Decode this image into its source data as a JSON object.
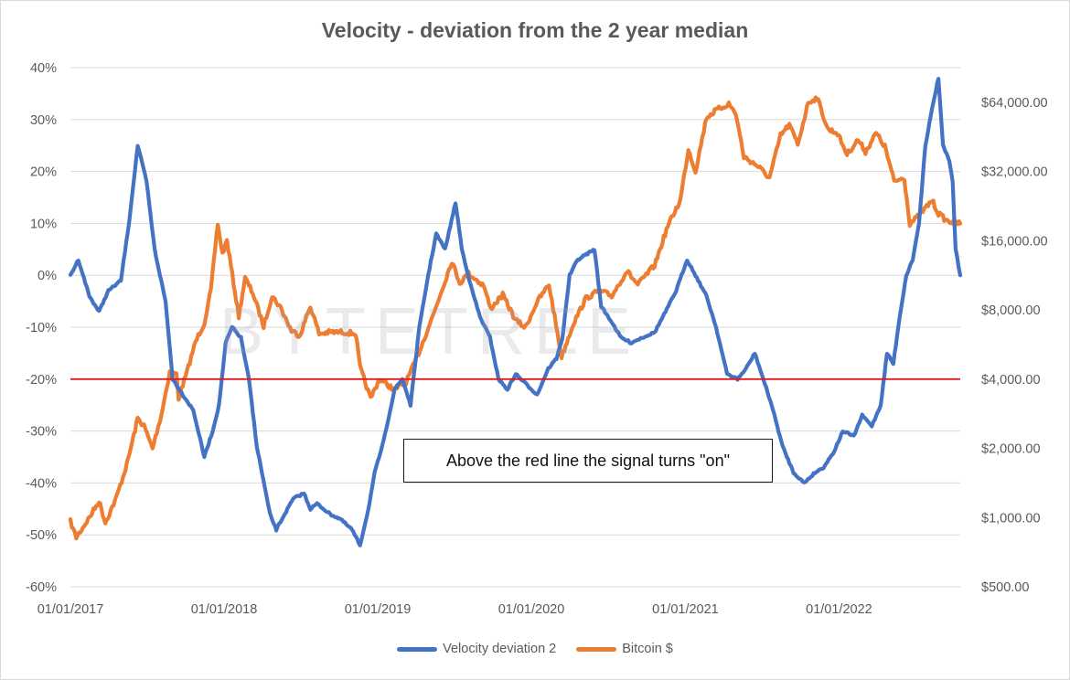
{
  "chart_data": {
    "type": "line",
    "title": "Velocity - deviation from the 2 year median",
    "x_tick_labels": [
      "01/01/2017",
      "01/01/2018",
      "01/01/2019",
      "01/01/2020",
      "01/01/2021",
      "01/01/2022"
    ],
    "x_range": [
      "01/01/2017",
      "16/10/2022"
    ],
    "y_left": {
      "ticks": [
        "40%",
        "30%",
        "20%",
        "10%",
        "0%",
        "-10%",
        "-20%",
        "-30%",
        "-40%",
        "-50%",
        "-60%"
      ],
      "ylim": [
        -0.6,
        0.4
      ]
    },
    "y_right": {
      "scale": "log2",
      "ticks": [
        "$64,000.00",
        "$32,000.00",
        "$16,000.00",
        "$8,000.00",
        "$4,000.00",
        "$2,000.00",
        "$1,000.00",
        "$500.00"
      ],
      "ylim": [
        500,
        90509
      ]
    },
    "grid": "horizontal",
    "legend_position": "bottom",
    "series": [
      {
        "name": "Velocity deviation 2",
        "axis": "left",
        "color": "#4472c4",
        "points": [
          [
            "2017-01-01",
            0.0
          ],
          [
            "2017-01-20",
            0.03
          ],
          [
            "2017-02-15",
            -0.04
          ],
          [
            "2017-03-10",
            -0.07
          ],
          [
            "2017-04-01",
            -0.03
          ],
          [
            "2017-05-01",
            -0.01
          ],
          [
            "2017-05-20",
            0.1
          ],
          [
            "2017-06-10",
            0.25
          ],
          [
            "2017-07-01",
            0.18
          ],
          [
            "2017-07-20",
            0.05
          ],
          [
            "2017-08-15",
            -0.05
          ],
          [
            "2017-09-01",
            -0.2
          ],
          [
            "2017-09-25",
            -0.23
          ],
          [
            "2017-10-20",
            -0.26
          ],
          [
            "2017-11-15",
            -0.35
          ],
          [
            "2017-12-05",
            -0.3
          ],
          [
            "2017-12-20",
            -0.25
          ],
          [
            "2018-01-05",
            -0.13
          ],
          [
            "2018-01-20",
            -0.1
          ],
          [
            "2018-02-10",
            -0.12
          ],
          [
            "2018-03-01",
            -0.2
          ],
          [
            "2018-03-20",
            -0.33
          ],
          [
            "2018-04-20",
            -0.46
          ],
          [
            "2018-05-05",
            -0.49
          ],
          [
            "2018-05-25",
            -0.46
          ],
          [
            "2018-06-15",
            -0.43
          ],
          [
            "2018-07-10",
            -0.42
          ],
          [
            "2018-07-25",
            -0.45
          ],
          [
            "2018-08-10",
            -0.44
          ],
          [
            "2018-09-10",
            -0.46
          ],
          [
            "2018-10-05",
            -0.47
          ],
          [
            "2018-11-01",
            -0.49
          ],
          [
            "2018-11-20",
            -0.52
          ],
          [
            "2018-12-10",
            -0.45
          ],
          [
            "2018-12-25",
            -0.38
          ],
          [
            "2019-01-15",
            -0.32
          ],
          [
            "2019-02-10",
            -0.22
          ],
          [
            "2019-03-01",
            -0.2
          ],
          [
            "2019-03-20",
            -0.25
          ],
          [
            "2019-04-10",
            -0.1
          ],
          [
            "2019-05-01",
            0.0
          ],
          [
            "2019-05-20",
            0.08
          ],
          [
            "2019-06-10",
            0.05
          ],
          [
            "2019-07-05",
            0.14
          ],
          [
            "2019-07-20",
            0.05
          ],
          [
            "2019-08-10",
            -0.02
          ],
          [
            "2019-09-01",
            -0.08
          ],
          [
            "2019-09-25",
            -0.12
          ],
          [
            "2019-10-15",
            -0.2
          ],
          [
            "2019-11-05",
            -0.22
          ],
          [
            "2019-11-25",
            -0.19
          ],
          [
            "2019-12-20",
            -0.21
          ],
          [
            "2020-01-15",
            -0.23
          ],
          [
            "2020-02-10",
            -0.18
          ],
          [
            "2020-03-01",
            -0.16
          ],
          [
            "2020-03-15",
            -0.12
          ],
          [
            "2020-04-01",
            0.0
          ],
          [
            "2020-04-20",
            0.03
          ],
          [
            "2020-05-10",
            0.04
          ],
          [
            "2020-05-30",
            0.05
          ],
          [
            "2020-06-15",
            -0.06
          ],
          [
            "2020-07-10",
            -0.09
          ],
          [
            "2020-08-01",
            -0.12
          ],
          [
            "2020-08-25",
            -0.13
          ],
          [
            "2020-09-20",
            -0.12
          ],
          [
            "2020-10-20",
            -0.11
          ],
          [
            "2020-11-15",
            -0.07
          ],
          [
            "2020-12-10",
            -0.03
          ],
          [
            "2021-01-05",
            0.03
          ],
          [
            "2021-01-25",
            0.0
          ],
          [
            "2021-02-20",
            -0.04
          ],
          [
            "2021-03-15",
            -0.1
          ],
          [
            "2021-04-10",
            -0.19
          ],
          [
            "2021-05-05",
            -0.2
          ],
          [
            "2021-05-25",
            -0.18
          ],
          [
            "2021-06-15",
            -0.15
          ],
          [
            "2021-07-05",
            -0.2
          ],
          [
            "2021-07-25",
            -0.25
          ],
          [
            "2021-08-20",
            -0.33
          ],
          [
            "2021-09-15",
            -0.38
          ],
          [
            "2021-10-10",
            -0.4
          ],
          [
            "2021-11-05",
            -0.38
          ],
          [
            "2021-11-25",
            -0.37
          ],
          [
            "2021-12-20",
            -0.34
          ],
          [
            "2022-01-10",
            -0.3
          ],
          [
            "2022-02-05",
            -0.31
          ],
          [
            "2022-02-25",
            -0.27
          ],
          [
            "2022-03-20",
            -0.29
          ],
          [
            "2022-04-10",
            -0.25
          ],
          [
            "2022-04-25",
            -0.15
          ],
          [
            "2022-05-10",
            -0.17
          ],
          [
            "2022-05-25",
            -0.08
          ],
          [
            "2022-06-10",
            0.0
          ],
          [
            "2022-06-25",
            0.03
          ],
          [
            "2022-07-10",
            0.1
          ],
          [
            "2022-07-25",
            0.25
          ],
          [
            "2022-08-10",
            0.32
          ],
          [
            "2022-08-25",
            0.38
          ],
          [
            "2022-09-05",
            0.25
          ],
          [
            "2022-09-20",
            0.22
          ],
          [
            "2022-09-28",
            0.18
          ],
          [
            "2022-10-05",
            0.05
          ],
          [
            "2022-10-16",
            0.0
          ]
        ]
      },
      {
        "name": "Bitcoin $",
        "axis": "right",
        "color": "#ed7d31",
        "points": [
          [
            "2017-01-01",
            960
          ],
          [
            "2017-01-15",
            820
          ],
          [
            "2017-02-15",
            1000
          ],
          [
            "2017-03-10",
            1180
          ],
          [
            "2017-03-25",
            950
          ],
          [
            "2017-04-20",
            1220
          ],
          [
            "2017-05-15",
            1700
          ],
          [
            "2017-06-10",
            2700
          ],
          [
            "2017-06-25",
            2500
          ],
          [
            "2017-07-15",
            2000
          ],
          [
            "2017-08-05",
            2800
          ],
          [
            "2017-08-25",
            4300
          ],
          [
            "2017-09-10",
            4200
          ],
          [
            "2017-09-15",
            3300
          ],
          [
            "2017-10-05",
            4300
          ],
          [
            "2017-10-25",
            5800
          ],
          [
            "2017-11-15",
            7000
          ],
          [
            "2017-12-01",
            9800
          ],
          [
            "2017-12-17",
            19000
          ],
          [
            "2017-12-28",
            14000
          ],
          [
            "2018-01-08",
            16000
          ],
          [
            "2018-02-05",
            7500
          ],
          [
            "2018-02-20",
            11000
          ],
          [
            "2018-03-10",
            9500
          ],
          [
            "2018-04-05",
            6800
          ],
          [
            "2018-04-25",
            9200
          ],
          [
            "2018-05-15",
            8200
          ],
          [
            "2018-06-10",
            6500
          ],
          [
            "2018-06-30",
            6200
          ],
          [
            "2018-07-25",
            8300
          ],
          [
            "2018-08-15",
            6300
          ],
          [
            "2018-09-10",
            6400
          ],
          [
            "2018-10-15",
            6400
          ],
          [
            "2018-11-10",
            6300
          ],
          [
            "2018-11-20",
            4500
          ],
          [
            "2018-12-15",
            3300
          ],
          [
            "2019-01-05",
            4000
          ],
          [
            "2019-02-10",
            3600
          ],
          [
            "2019-03-10",
            3900
          ],
          [
            "2019-04-05",
            5000
          ],
          [
            "2019-05-15",
            7800
          ],
          [
            "2019-06-26",
            13000
          ],
          [
            "2019-07-15",
            10500
          ],
          [
            "2019-08-05",
            11500
          ],
          [
            "2019-09-10",
            10200
          ],
          [
            "2019-09-26",
            8100
          ],
          [
            "2019-10-25",
            9300
          ],
          [
            "2019-11-25",
            7200
          ],
          [
            "2019-12-18",
            6700
          ],
          [
            "2020-01-15",
            8700
          ],
          [
            "2020-02-12",
            10300
          ],
          [
            "2020-03-13",
            5000
          ],
          [
            "2020-04-10",
            7000
          ],
          [
            "2020-05-10",
            9000
          ],
          [
            "2020-06-10",
            9700
          ],
          [
            "2020-07-10",
            9200
          ],
          [
            "2020-08-15",
            11800
          ],
          [
            "2020-09-10",
            10300
          ],
          [
            "2020-10-20",
            12500
          ],
          [
            "2020-11-20",
            18500
          ],
          [
            "2020-12-20",
            24000
          ],
          [
            "2021-01-08",
            40000
          ],
          [
            "2021-01-25",
            32000
          ],
          [
            "2021-02-20",
            55000
          ],
          [
            "2021-03-15",
            59000
          ],
          [
            "2021-04-14",
            63000
          ],
          [
            "2021-05-01",
            57000
          ],
          [
            "2021-05-20",
            37000
          ],
          [
            "2021-06-20",
            34000
          ],
          [
            "2021-07-20",
            30000
          ],
          [
            "2021-08-15",
            46000
          ],
          [
            "2021-09-05",
            51000
          ],
          [
            "2021-09-25",
            42000
          ],
          [
            "2021-10-20",
            64000
          ],
          [
            "2021-11-10",
            67000
          ],
          [
            "2021-12-05",
            49000
          ],
          [
            "2021-12-28",
            47000
          ],
          [
            "2022-01-20",
            38000
          ],
          [
            "2022-02-15",
            44000
          ],
          [
            "2022-03-05",
            39000
          ],
          [
            "2022-03-30",
            47000
          ],
          [
            "2022-04-20",
            41000
          ],
          [
            "2022-05-12",
            29000
          ],
          [
            "2022-06-05",
            30000
          ],
          [
            "2022-06-18",
            19000
          ],
          [
            "2022-07-10",
            20500
          ],
          [
            "2022-08-10",
            24000
          ],
          [
            "2022-08-25",
            21000
          ],
          [
            "2022-09-15",
            19500
          ],
          [
            "2022-10-16",
            19000
          ]
        ]
      }
    ],
    "reference_line": {
      "axis": "left",
      "y": -0.2,
      "color": "#e31a1c"
    },
    "annotation": {
      "text": "Above the red line the signal turns \"on\""
    },
    "watermark": "BYTETREE"
  }
}
